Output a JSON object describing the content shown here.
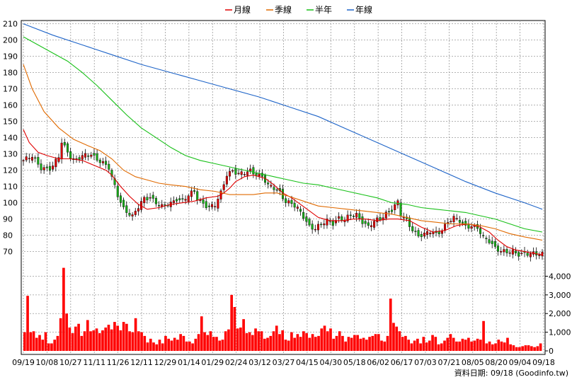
{
  "legend": {
    "items": [
      {
        "label": "月線",
        "color": "#e00000"
      },
      {
        "label": "季線",
        "color": "#e06a00"
      },
      {
        "label": "半年",
        "color": "#18c018"
      },
      {
        "label": "年線",
        "color": "#1e64c8"
      }
    ]
  },
  "source_note": "資料日期: 09/18  (Goodinfo.tw)",
  "colors": {
    "up_candle": "#e00000",
    "down_candle": "#18b018",
    "volume": "#ff0000",
    "grid": "#9a9a9a",
    "frame": "#000000"
  },
  "chart_data": [
    {
      "type": "candlestick",
      "grid": true,
      "ylim": [
        62,
        212
      ],
      "ytick_labels": [
        "210",
        "200",
        "190",
        "180",
        "170",
        "160",
        "150",
        "140",
        "130",
        "120",
        "110",
        "100",
        "90",
        "80",
        "70"
      ],
      "x_tick_labels": [
        "09/19",
        "10/08",
        "10/27",
        "11/11",
        "11/26",
        "12/11",
        "12/29",
        "01/14",
        "01/29",
        "02/24",
        "03/12",
        "03/27",
        "04/15",
        "04/30",
        "05/18",
        "06/02",
        "06/17",
        "07/03",
        "07/21",
        "08/05",
        "08/20",
        "09/04",
        "09/18"
      ],
      "price_anchors": [
        [
          0,
          126
        ],
        [
          3,
          128
        ],
        [
          6,
          122
        ],
        [
          9,
          121
        ],
        [
          10,
          122
        ],
        [
          12,
          128
        ],
        [
          13,
          137
        ],
        [
          15,
          132
        ],
        [
          17,
          126
        ],
        [
          20,
          128
        ],
        [
          23,
          130
        ],
        [
          26,
          126
        ],
        [
          29,
          121
        ],
        [
          30,
          115
        ],
        [
          32,
          105
        ],
        [
          34,
          97
        ],
        [
          36,
          93
        ],
        [
          37,
          91
        ],
        [
          39,
          97
        ],
        [
          41,
          103
        ],
        [
          43,
          104
        ],
        [
          45,
          100
        ],
        [
          47,
          97
        ],
        [
          50,
          100
        ],
        [
          52,
          103
        ],
        [
          54,
          101
        ],
        [
          56,
          104
        ],
        [
          58,
          107
        ],
        [
          59,
          103
        ],
        [
          61,
          100
        ],
        [
          63,
          97
        ],
        [
          65,
          98
        ],
        [
          67,
          106
        ],
        [
          69,
          118
        ],
        [
          71,
          120
        ],
        [
          73,
          117
        ],
        [
          75,
          118
        ],
        [
          77,
          120
        ],
        [
          79,
          118
        ],
        [
          81,
          116
        ],
        [
          83,
          110
        ],
        [
          85,
          109
        ],
        [
          87,
          107
        ],
        [
          89,
          101
        ],
        [
          91,
          99
        ],
        [
          93,
          96
        ],
        [
          95,
          92
        ],
        [
          97,
          86
        ],
        [
          99,
          84
        ],
        [
          101,
          86
        ],
        [
          103,
          89
        ],
        [
          105,
          88
        ],
        [
          107,
          91
        ],
        [
          109,
          89
        ],
        [
          111,
          92
        ],
        [
          113,
          93
        ],
        [
          115,
          89
        ],
        [
          117,
          85
        ],
        [
          119,
          88
        ],
        [
          121,
          90
        ],
        [
          123,
          94
        ],
        [
          125,
          96
        ],
        [
          127,
          100
        ],
        [
          128,
          92
        ],
        [
          130,
          89
        ],
        [
          132,
          84
        ],
        [
          134,
          80
        ],
        [
          136,
          80
        ],
        [
          138,
          82
        ],
        [
          140,
          81
        ],
        [
          142,
          84
        ],
        [
          144,
          88
        ],
        [
          146,
          90
        ],
        [
          148,
          89
        ],
        [
          150,
          86
        ],
        [
          152,
          86
        ],
        [
          154,
          84
        ],
        [
          156,
          78
        ],
        [
          158,
          77
        ],
        [
          160,
          73
        ],
        [
          162,
          70
        ],
        [
          164,
          69
        ],
        [
          166,
          70
        ],
        [
          168,
          69
        ],
        [
          170,
          69
        ],
        [
          172,
          68
        ],
        [
          174,
          68
        ],
        [
          176,
          69
        ]
      ],
      "ma_lines": [
        {
          "name": "月線",
          "color": "#e00000",
          "points": [
            [
              0,
              145
            ],
            [
              2,
              137
            ],
            [
              5,
              131
            ],
            [
              8,
              129
            ],
            [
              12,
              127
            ],
            [
              16,
              127
            ],
            [
              20,
              126
            ],
            [
              24,
              123
            ],
            [
              28,
              120
            ],
            [
              30,
              117
            ],
            [
              33,
              110
            ],
            [
              36,
              104
            ],
            [
              39,
              99
            ],
            [
              42,
              96
            ],
            [
              46,
              97
            ],
            [
              50,
              99
            ],
            [
              54,
              100
            ],
            [
              58,
              101
            ],
            [
              62,
              103
            ],
            [
              66,
              104
            ],
            [
              68,
              106
            ],
            [
              70,
              109
            ],
            [
              72,
              113
            ],
            [
              75,
              116
            ],
            [
              78,
              117
            ],
            [
              82,
              115
            ],
            [
              85,
              111
            ],
            [
              88,
              106
            ],
            [
              91,
              103
            ],
            [
              94,
              99
            ],
            [
              97,
              95
            ],
            [
              100,
              91
            ],
            [
              104,
              89
            ],
            [
              108,
              89
            ],
            [
              112,
              90
            ],
            [
              116,
              90
            ],
            [
              120,
              89
            ],
            [
              124,
              90
            ],
            [
              127,
              90
            ],
            [
              131,
              89
            ],
            [
              135,
              85
            ],
            [
              139,
              82
            ],
            [
              143,
              83
            ],
            [
              147,
              86
            ],
            [
              151,
              87
            ],
            [
              155,
              85
            ],
            [
              158,
              82
            ],
            [
              161,
              77
            ],
            [
              164,
              73
            ],
            [
              167,
              71
            ],
            [
              170,
              70
            ],
            [
              173,
              69
            ],
            [
              176,
              68
            ]
          ]
        },
        {
          "name": "季線",
          "color": "#e06a00",
          "points": [
            [
              0,
              185
            ],
            [
              3,
              170
            ],
            [
              7,
              156
            ],
            [
              12,
              146
            ],
            [
              17,
              139
            ],
            [
              22,
              135
            ],
            [
              26,
              132
            ],
            [
              30,
              127
            ],
            [
              34,
              120
            ],
            [
              38,
              116
            ],
            [
              42,
              114
            ],
            [
              46,
              112
            ],
            [
              50,
              111
            ],
            [
              55,
              110
            ],
            [
              60,
              108
            ],
            [
              65,
              107
            ],
            [
              70,
              105
            ],
            [
              74,
              105
            ],
            [
              78,
              105
            ],
            [
              82,
              106
            ],
            [
              86,
              106
            ],
            [
              90,
              104
            ],
            [
              95,
              101
            ],
            [
              100,
              98
            ],
            [
              105,
              97
            ],
            [
              110,
              96
            ],
            [
              115,
              95
            ],
            [
              120,
              94
            ],
            [
              125,
              93
            ],
            [
              130,
              91
            ],
            [
              135,
              89
            ],
            [
              140,
              88
            ],
            [
              145,
              87
            ],
            [
              150,
              87
            ],
            [
              155,
              86
            ],
            [
              160,
              84
            ],
            [
              165,
              81
            ],
            [
              170,
              79
            ],
            [
              176,
              77
            ]
          ]
        },
        {
          "name": "半年",
          "color": "#18c018",
          "points": [
            [
              0,
              202
            ],
            [
              5,
              197
            ],
            [
              10,
              192
            ],
            [
              15,
              187
            ],
            [
              20,
              180
            ],
            [
              25,
              172
            ],
            [
              30,
              163
            ],
            [
              35,
              154
            ],
            [
              40,
              146
            ],
            [
              45,
              140
            ],
            [
              50,
              134
            ],
            [
              55,
              129
            ],
            [
              60,
              126
            ],
            [
              65,
              124
            ],
            [
              70,
              122
            ],
            [
              75,
              120
            ],
            [
              80,
              118
            ],
            [
              85,
              116
            ],
            [
              90,
              114
            ],
            [
              95,
              112
            ],
            [
              100,
              111
            ],
            [
              105,
              109
            ],
            [
              110,
              107
            ],
            [
              115,
              105
            ],
            [
              120,
              103
            ],
            [
              125,
              100
            ],
            [
              130,
              99
            ],
            [
              135,
              97
            ],
            [
              140,
              96
            ],
            [
              145,
              95
            ],
            [
              150,
              94
            ],
            [
              155,
              92
            ],
            [
              160,
              90
            ],
            [
              165,
              87
            ],
            [
              170,
              84
            ],
            [
              176,
              82
            ]
          ]
        },
        {
          "name": "年線",
          "color": "#1e64c8",
          "points": [
            [
              0,
              210
            ],
            [
              10,
              203
            ],
            [
              20,
              197
            ],
            [
              30,
              191
            ],
            [
              40,
              185
            ],
            [
              50,
              180
            ],
            [
              60,
              175
            ],
            [
              70,
              170
            ],
            [
              80,
              165
            ],
            [
              90,
              159
            ],
            [
              100,
              153
            ],
            [
              110,
              145
            ],
            [
              120,
              137
            ],
            [
              130,
              129
            ],
            [
              140,
              121
            ],
            [
              150,
              113
            ],
            [
              160,
              106
            ],
            [
              170,
              100
            ],
            [
              176,
              96
            ]
          ]
        }
      ]
    },
    {
      "type": "bar",
      "series": [
        {
          "name": "",
          "values": [
            1000,
            2950,
            1000,
            1050,
            700,
            850,
            600,
            1000,
            400,
            400,
            600,
            800,
            1750,
            4450,
            2000,
            1250,
            950,
            1300,
            1450,
            800,
            1050,
            1650,
            1050,
            1100,
            1200,
            950,
            1100,
            1250,
            1400,
            1150,
            1550,
            1350,
            1100,
            1550,
            1450,
            1050,
            1000,
            1750,
            1050,
            1000,
            800,
            450,
            650,
            450,
            350,
            600,
            400,
            800,
            650,
            550,
            700,
            600,
            900,
            800,
            500,
            500,
            400,
            650,
            900,
            1850,
            1000,
            850,
            1050,
            750,
            750,
            550,
            600,
            1050,
            1150,
            3000,
            2350,
            1200,
            1250,
            1700,
            950,
            1000,
            850,
            1200,
            1050,
            1050,
            650,
            700,
            800,
            1050,
            1350,
            900,
            1100,
            600,
            550,
            1000,
            700,
            900,
            750,
            1050,
            950,
            700,
            900,
            750,
            800,
            1200,
            1350,
            1050,
            1200,
            650,
            800,
            1050,
            800,
            500,
            750,
            700,
            850,
            850,
            650,
            700,
            600,
            750,
            800,
            900,
            900,
            550,
            500,
            800,
            2800,
            1500,
            1300,
            1050,
            750,
            800,
            600,
            400,
            550,
            650,
            400,
            750,
            450,
            550,
            850,
            750,
            350,
            400,
            550,
            700,
            900,
            700,
            500,
            500,
            650,
            600,
            700,
            500,
            550,
            650,
            600,
            1600,
            400,
            500,
            350,
            400,
            600,
            500,
            450,
            700,
            350,
            300,
            200,
            200,
            250,
            300,
            300,
            250,
            200,
            250,
            400
          ]
        }
      ],
      "ytick_labels": [
        "4,000",
        "3,000",
        "2,000",
        "1,000",
        "0"
      ],
      "ylim": [
        0,
        4700
      ]
    }
  ]
}
